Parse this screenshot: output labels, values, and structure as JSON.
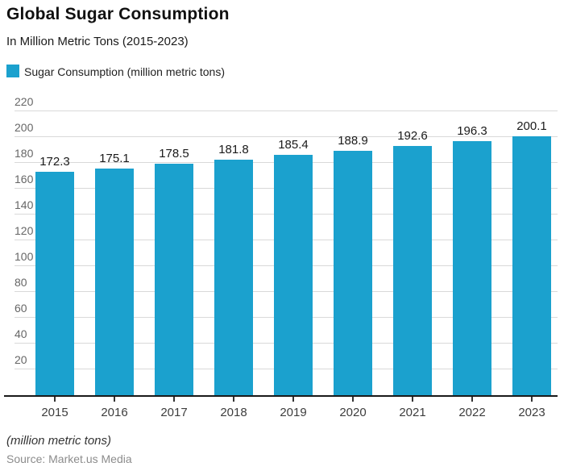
{
  "header": {
    "title": "Global Sugar Consumption",
    "subtitle": "In Million Metric Tons (2015-2023)"
  },
  "legend": {
    "label": "Sugar Consumption (million metric tons)"
  },
  "footer": {
    "note": "(million metric tons)",
    "source": "Source: Market.us Media"
  },
  "colors": {
    "bar": "#1BA1CE",
    "grid": "#d9d9d9",
    "axis": "#1a1a1a",
    "tick": "#333333",
    "y_tick_label": "#666666",
    "x_tick_label": "#3d3d3d",
    "data_label": "#1a1a1a"
  },
  "chart_data": {
    "type": "bar",
    "title": "Global Sugar Consumption",
    "subtitle": "In Million Metric Tons (2015-2023)",
    "categories": [
      "2015",
      "2016",
      "2017",
      "2018",
      "2019",
      "2020",
      "2021",
      "2022",
      "2023"
    ],
    "series": [
      {
        "name": "Sugar Consumption (million metric tons)",
        "values": [
          172.3,
          175.1,
          178.5,
          181.8,
          185.4,
          188.9,
          192.6,
          196.3,
          200.1
        ]
      }
    ],
    "xlabel": "",
    "ylabel": "",
    "ylim": [
      0,
      220
    ],
    "yticks": [
      20,
      40,
      60,
      80,
      100,
      120,
      140,
      160,
      180,
      200,
      220
    ],
    "grid": true,
    "legend_position": "top-left",
    "data_labels": true,
    "value_decimals": 1
  }
}
